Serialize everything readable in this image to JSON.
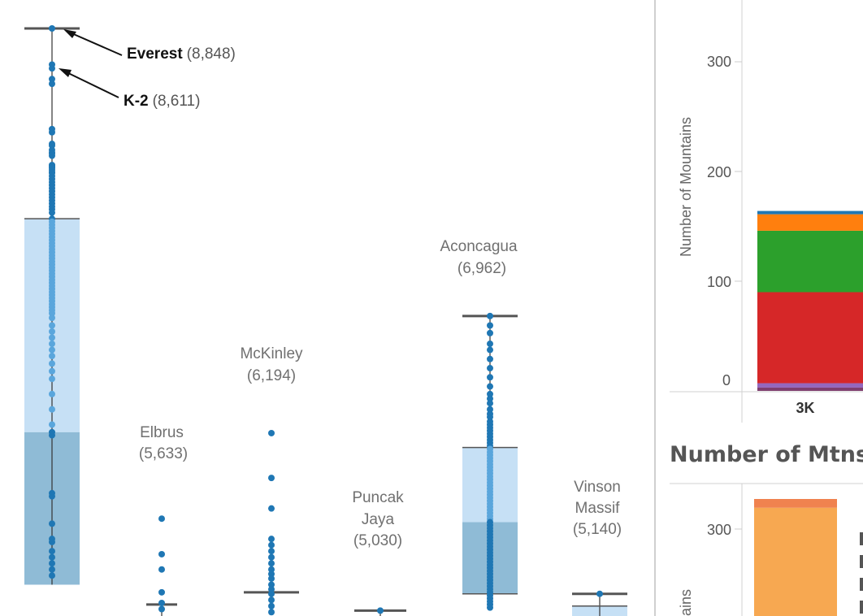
{
  "chart_data": [
    {
      "type": "box",
      "title": "",
      "boxes": [
        {
          "id": "everest",
          "whisker_top": 8848,
          "q3": 7600,
          "median": 6200,
          "bottom_visible": 5200,
          "points": [
            8848,
            8611,
            8586,
            8516,
            8485,
            8188,
            8167,
            8091,
            8080,
            8051,
            8035,
            8027,
            8013,
            7952,
            7950,
            7940,
            7932,
            7920,
            7906,
            7900,
            7880,
            7860,
            7840,
            7820,
            7800,
            7780,
            7760,
            7740,
            7720,
            7700,
            7680,
            7662,
            7640,
            7600,
            7580,
            7560,
            7540,
            7520,
            7500,
            7480,
            7460,
            7440,
            7420,
            7400,
            7380,
            7360,
            7340,
            7320,
            7300,
            7280,
            7260,
            7240,
            7220,
            7200,
            7180,
            7160,
            7140,
            7120,
            7100,
            7080,
            7060,
            7040,
            7020,
            7000,
            6980,
            6950,
            6900,
            6860,
            6820,
            6780,
            6740,
            6700,
            6650,
            6600,
            6550,
            6450,
            6350,
            6250,
            6200,
            6180,
            5800,
            5780,
            5600,
            5500,
            5480,
            5420,
            5380,
            5340,
            5300,
            5260
          ]
        },
        {
          "id": "elbrus",
          "whisker_top": 5070,
          "bottom_visible": 4980,
          "points": [
            5633,
            5400,
            5300,
            5150,
            5080,
            5040
          ]
        },
        {
          "id": "mckinley",
          "whisker_top": 5150,
          "bottom_visible": 5000,
          "points": [
            6194,
            5900,
            5700,
            5500,
            5460,
            5420,
            5380,
            5340,
            5300,
            5270,
            5240,
            5200,
            5170,
            5140,
            5100,
            5060,
            5020
          ]
        },
        {
          "id": "puncak",
          "whisker_top": 5030,
          "bottom_visible": 4850,
          "points": [
            5030,
            4950
          ]
        },
        {
          "id": "aconcagua",
          "whisker_top": 6962,
          "q3": 6100,
          "median": 5610,
          "q1": 5140,
          "bottom_visible": 5030,
          "points": [
            6962,
            6900,
            6850,
            6780,
            6740,
            6680,
            6620,
            6560,
            6500,
            6450,
            6420,
            6390,
            6350,
            6320,
            6300,
            6270,
            6250,
            6230,
            6210,
            6190,
            6170,
            6150,
            6130,
            6110,
            6090,
            6070,
            6050,
            6030,
            6010,
            5990,
            5970,
            5950,
            5930,
            5910,
            5890,
            5870,
            5850,
            5830,
            5810,
            5790,
            5770,
            5750,
            5730,
            5710,
            5690,
            5670,
            5650,
            5630,
            5610,
            5590,
            5570,
            5550,
            5530,
            5510,
            5490,
            5470,
            5450,
            5430,
            5410,
            5390,
            5370,
            5350,
            5330,
            5310,
            5290,
            5270,
            5250,
            5230,
            5210,
            5190,
            5170,
            5150,
            5130,
            5110,
            5090,
            5070,
            5050
          ]
        },
        {
          "id": "vinson",
          "whisker_top": 5140,
          "q3": 5060,
          "bottom_visible": 4980,
          "points": [
            5140
          ]
        }
      ],
      "annotations": {
        "everest": {
          "name": "Everest",
          "value": "(8,848)"
        },
        "k2": {
          "name": "K-2",
          "value": "(8,611)"
        },
        "elbrus": {
          "line1": "Elbrus",
          "line2": "(5,633)"
        },
        "mckinley": {
          "line1": "McKinley",
          "line2": "(6,194)"
        },
        "puncak": {
          "line1": "Puncak",
          "line2": "Jaya",
          "line3": "(5,030)"
        },
        "aconcagua": {
          "line1": "Aconcagua",
          "line2": "(6,962)"
        },
        "vinson": {
          "line1": "Vinson",
          "line2": "Massif",
          "line3": "(5,140)"
        }
      },
      "colors": {
        "point": "#1f77b4",
        "point_light": "#5aa6dc",
        "box_upper": "#c6e0f5",
        "box_lower": "#8fbbd6",
        "whisker": "#555555"
      }
    },
    {
      "type": "bar",
      "stacked": true,
      "ylabel": "Number of Mountains",
      "yticks": [
        "300",
        "200",
        "100",
        "0"
      ],
      "tick_values": [
        300,
        200,
        100,
        0
      ],
      "ylim": [
        0,
        350
      ],
      "categories": [
        "3K"
      ],
      "series": [
        {
          "color": "#7f3f6f",
          "values": [
            3
          ]
        },
        {
          "color": "#9467bd",
          "values": [
            4
          ]
        },
        {
          "color": "#d62728",
          "values": [
            83
          ]
        },
        {
          "color": "#2ca02c",
          "values": [
            56
          ]
        },
        {
          "color": "#ff7f0e",
          "values": [
            15
          ]
        },
        {
          "color": "#1f77b4",
          "values": [
            3
          ]
        }
      ]
    },
    {
      "type": "bar",
      "stacked": true,
      "title": "Number of Mtns",
      "ylabel": "ains",
      "yticks": [
        "300"
      ],
      "tick_values": [
        300
      ],
      "series": [
        {
          "color": "#f7a851",
          "values": [
            334
          ]
        },
        {
          "color": "#f0824f",
          "values": [
            14
          ]
        }
      ]
    }
  ]
}
